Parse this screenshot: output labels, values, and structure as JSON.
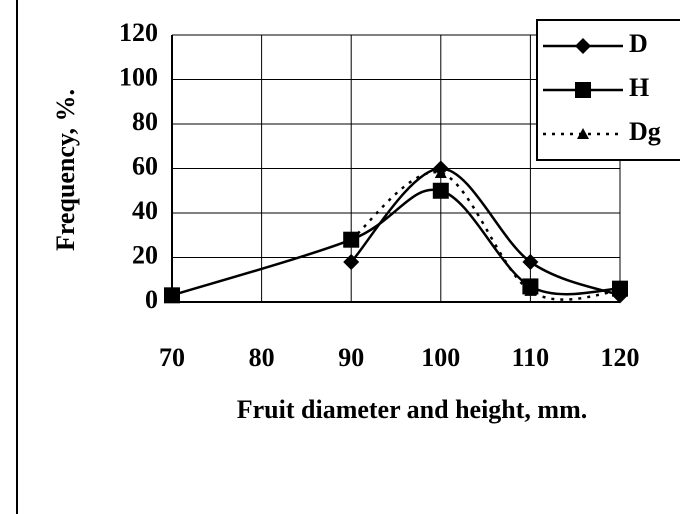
{
  "chart_data": {
    "type": "line",
    "xlabel": "Fruit diameter and height, mm.",
    "ylabel": "Frequency, %.",
    "x": [
      70,
      90,
      100,
      110,
      120
    ],
    "series": [
      {
        "name": "D",
        "color": "#000000",
        "marker": "diamond",
        "line_style": "solid",
        "values": [
          null,
          18,
          60,
          18,
          3
        ]
      },
      {
        "name": "H",
        "color": "#000000",
        "marker": "square",
        "line_style": "solid",
        "values": [
          3,
          28,
          50,
          7,
          6
        ]
      },
      {
        "name": "Dg",
        "color": "#000000",
        "marker": "triangle",
        "line_style": "dotted",
        "values": [
          null,
          28,
          58,
          5,
          5
        ]
      }
    ],
    "xlim": [
      70,
      120
    ],
    "xticks": [
      70,
      80,
      90,
      100,
      110,
      120
    ],
    "ylim": [
      0,
      120
    ],
    "yticks": [
      0,
      20,
      40,
      60,
      80,
      100,
      120
    ],
    "grid": true,
    "legend": "upper right",
    "smooth": true
  }
}
